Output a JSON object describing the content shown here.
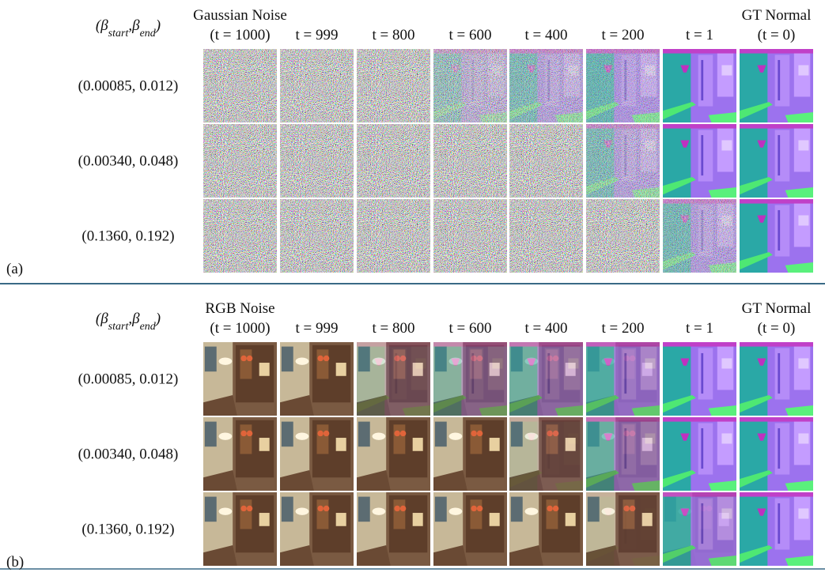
{
  "panels": [
    {
      "label": "(a)",
      "param_header": [
        {
          "text": "(β"
        },
        {
          "text": "start",
          "sub": true
        },
        {
          "text": ",β"
        },
        {
          "text": "end",
          "sub": true
        },
        {
          "text": ")"
        }
      ],
      "columns": [
        {
          "lines": [
            "Gaussian Noise",
            "(t = 1000)"
          ]
        },
        {
          "lines": [
            "t = 999"
          ]
        },
        {
          "lines": [
            "t = 800"
          ]
        },
        {
          "lines": [
            "t = 600"
          ]
        },
        {
          "lines": [
            "t = 400"
          ]
        },
        {
          "lines": [
            "t = 200"
          ]
        },
        {
          "lines": [
            "t = 1"
          ]
        },
        {
          "lines": [
            "GT Normal",
            "(t = 0)"
          ]
        }
      ],
      "rows": [
        "(0.00085, 0.012)",
        "(0.00340, 0.048)",
        "(0.1360, 0.192)"
      ]
    },
    {
      "label": "(b)",
      "param_header": [
        {
          "text": "(β"
        },
        {
          "text": "start",
          "sub": true
        },
        {
          "text": ",β"
        },
        {
          "text": "end",
          "sub": true
        },
        {
          "text": ")"
        }
      ],
      "columns": [
        {
          "lines": [
            "RGB Noise",
            "(t = 1000)"
          ]
        },
        {
          "lines": [
            "t = 999"
          ]
        },
        {
          "lines": [
            "t = 800"
          ]
        },
        {
          "lines": [
            "t = 600"
          ]
        },
        {
          "lines": [
            "t = 400"
          ]
        },
        {
          "lines": [
            "t = 200"
          ]
        },
        {
          "lines": [
            "t = 1"
          ]
        },
        {
          "lines": [
            "GT Normal",
            "(t = 0)"
          ]
        }
      ],
      "rows": [
        "(0.00085, 0.012)",
        "(0.00340, 0.048)",
        "(0.1360, 0.192)"
      ]
    }
  ]
}
